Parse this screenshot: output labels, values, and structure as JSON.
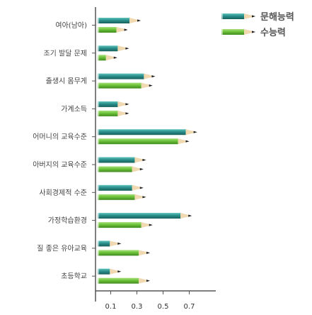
{
  "chart_data": {
    "type": "bar",
    "orientation": "horizontal",
    "categories": [
      "여아(남아)",
      "조기 발달 문제",
      "출생시 몸무게",
      "가계소득",
      "어머니의 교육수준",
      "아버지의 교육수준",
      "사회경제적 수준",
      "가정학습환경",
      "질 좋은 유아교육",
      "초등학교"
    ],
    "series": [
      {
        "name": "문해능력",
        "color": "#2a8f8a",
        "values": [
          0.33,
          0.24,
          0.44,
          0.24,
          0.76,
          0.37,
          0.35,
          0.72,
          0.18,
          0.18
        ]
      },
      {
        "name": "수능력",
        "color": "#6cc23a",
        "values": [
          0.23,
          0.15,
          0.42,
          0.24,
          0.7,
          0.35,
          0.37,
          0.42,
          0.4,
          0.4
        ]
      }
    ],
    "xticks": [
      0.1,
      0.3,
      0.5,
      0.7
    ],
    "xtick_labels": [
      "0.1",
      "0.3",
      "0.5",
      "0.7"
    ],
    "xlim": [
      0,
      0.85
    ],
    "legend": "top-right",
    "grid": false
  }
}
